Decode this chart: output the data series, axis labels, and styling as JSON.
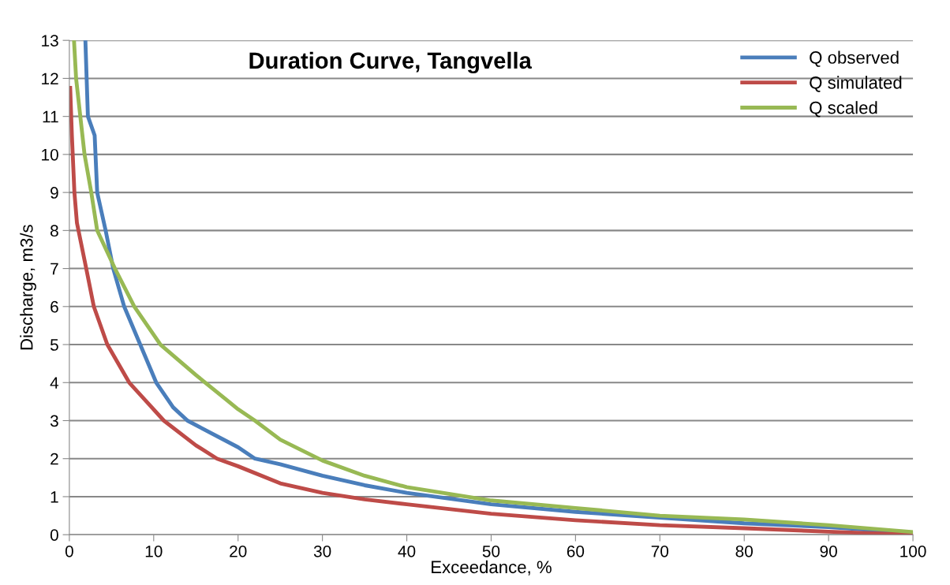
{
  "chart_data": {
    "type": "line",
    "title": "Duration Curve, Tangvella",
    "xlabel": "Exceedance, %",
    "ylabel": "Discharge, m3/s",
    "xlim": [
      0,
      100
    ],
    "ylim": [
      0,
      13
    ],
    "xticks": [
      0,
      10,
      20,
      30,
      40,
      50,
      60,
      70,
      80,
      90,
      100
    ],
    "yticks": [
      0,
      1,
      2,
      3,
      4,
      5,
      6,
      7,
      8,
      9,
      10,
      11,
      12,
      13
    ],
    "grid": "y",
    "legend": "top right",
    "marker": "none",
    "line_style": "solid",
    "series": [
      {
        "name": "Q observed",
        "color": "#4a7ebb",
        "x": [
          1.9,
          2.2,
          3.0,
          3.3,
          4.3,
          5.2,
          6.5,
          8.4,
          10.3,
          12.3,
          14.0,
          20,
          22,
          25,
          30,
          35,
          40,
          50,
          60,
          70,
          80,
          90,
          100
        ],
        "values": [
          13,
          11,
          10.5,
          9,
          8,
          7,
          6,
          5,
          4,
          3.35,
          3,
          2.3,
          2.0,
          1.85,
          1.55,
          1.3,
          1.1,
          0.8,
          0.6,
          0.45,
          0.3,
          0.2,
          0.05
        ]
      },
      {
        "name": "Q simulated",
        "color": "#be4b48",
        "x": [
          0.1,
          0.3,
          0.4,
          0.6,
          0.9,
          2.0,
          2.9,
          4.5,
          7.1,
          11.2,
          15,
          17.5,
          20,
          25,
          30,
          35,
          40,
          50,
          60,
          70,
          80,
          90,
          100
        ],
        "values": [
          11.75,
          10.5,
          10,
          9,
          8.2,
          7,
          6,
          5,
          4,
          3,
          2.35,
          2.0,
          1.8,
          1.35,
          1.1,
          0.93,
          0.8,
          0.55,
          0.38,
          0.25,
          0.17,
          0.08,
          0.0
        ]
      },
      {
        "name": "Q scaled",
        "color": "#98b954",
        "x": [
          0.55,
          0.8,
          1.3,
          1.8,
          2.6,
          3.3,
          5.4,
          7.7,
          10.8,
          15,
          20,
          22,
          25,
          30,
          35,
          40,
          50,
          60,
          70,
          80,
          90,
          100
        ],
        "values": [
          13,
          12,
          11,
          10,
          9,
          8,
          7,
          6,
          5,
          4.2,
          3.3,
          3.0,
          2.5,
          1.95,
          1.55,
          1.25,
          0.9,
          0.7,
          0.5,
          0.4,
          0.25,
          0.07
        ]
      }
    ]
  }
}
